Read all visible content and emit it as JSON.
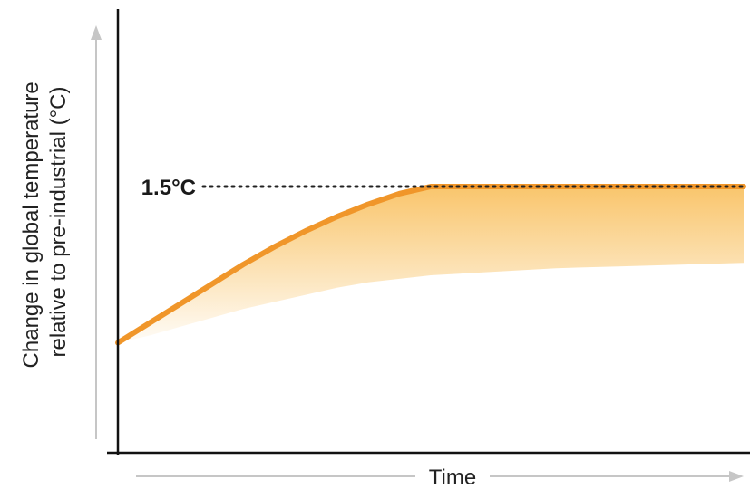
{
  "chart_data": {
    "type": "area",
    "title": "",
    "xlabel": "Time",
    "ylabel": [
      "Change in global temperature",
      "relative to pre-industrial (°C)"
    ],
    "x": [
      0,
      0.05,
      0.1,
      0.15,
      0.2,
      0.25,
      0.3,
      0.35,
      0.4,
      0.45,
      0.5,
      0.6,
      0.7,
      0.8,
      0.9,
      1.0
    ],
    "series": [
      {
        "values": [
          0.62,
          0.73,
          0.84,
          0.95,
          1.06,
          1.16,
          1.25,
          1.33,
          1.4,
          1.46,
          1.5,
          1.5,
          1.5,
          1.5,
          1.5,
          1.5
        ]
      }
    ],
    "band_lower": [
      0.62,
      0.66,
      0.71,
      0.76,
      0.81,
      0.85,
      0.89,
      0.93,
      0.96,
      0.98,
      1.0,
      1.02,
      1.04,
      1.05,
      1.06,
      1.07
    ],
    "reference_line": {
      "value": 1.5,
      "label": "1.5°C",
      "style": "dotted"
    },
    "ylim": [
      0,
      2.5
    ],
    "xlim": [
      0,
      1
    ],
    "grid": false,
    "axis_arrows": true,
    "colors": {
      "line": "#f0962a",
      "fill": "#f7b23b",
      "axis": "#111111",
      "arrow": "#bdbdbd",
      "reference": "#222222"
    }
  }
}
